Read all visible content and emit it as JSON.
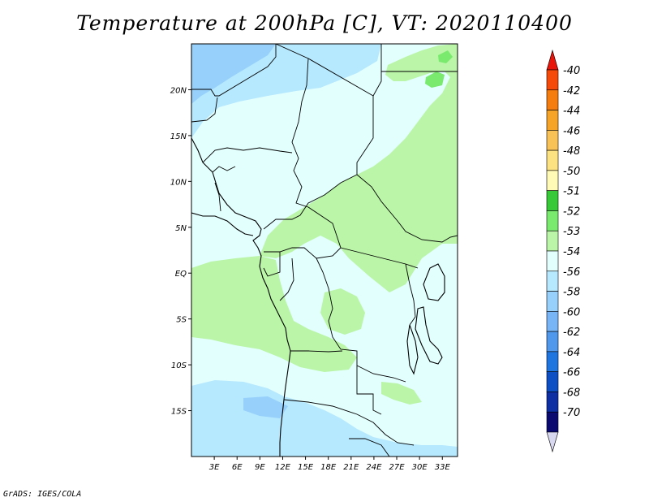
{
  "title": "Temperature at 200hPa [C], VT: 2020110400",
  "credit": "GrADS: IGES/COLA",
  "map": {
    "lon_range": [
      0,
      35
    ],
    "lat_range": [
      -20,
      25
    ],
    "lat_ticks": [
      "20N",
      "15N",
      "10N",
      "5N",
      "EQ",
      "5S",
      "10S",
      "15S"
    ],
    "lon_ticks": [
      "3E",
      "6E",
      "9E",
      "12E",
      "15E",
      "18E",
      "21E",
      "24E",
      "27E",
      "30E",
      "33E"
    ]
  },
  "colorbar": {
    "labels": [
      "-40",
      "-42",
      "-44",
      "-46",
      "-48",
      "-50",
      "-51",
      "-52",
      "-53",
      "-54",
      "-56",
      "-58",
      "-60",
      "-62",
      "-64",
      "-66",
      "-68",
      "-70"
    ],
    "colors": [
      "#e8150a",
      "#f54a0a",
      "#f57d0f",
      "#f5a428",
      "#f9c257",
      "#fde282",
      "#fffab5",
      "#37c937",
      "#7aea6f",
      "#baf5a8",
      "#e2fffe",
      "#b6e8fe",
      "#96d0fb",
      "#77b5f7",
      "#4f98ec",
      "#1f75e0",
      "#0c4fc4",
      "#0d2fa3",
      "#0a0a70",
      "#d8d8f0"
    ]
  },
  "colors": {
    "c54": "#e2fffe",
    "c53": "#baf5a8",
    "c52": "#7aea6f",
    "c56": "#b6e8fe",
    "c58": "#96d0fb"
  }
}
